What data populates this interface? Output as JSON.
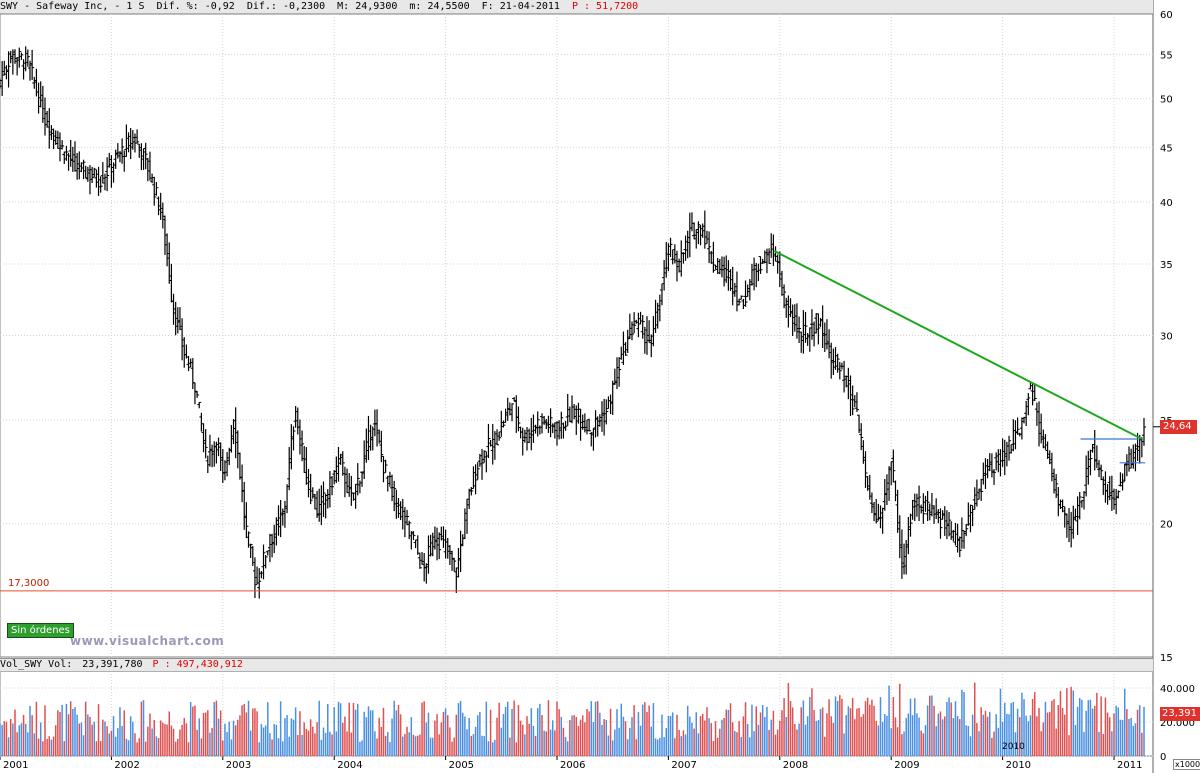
{
  "header": {
    "symbol": "SWY - Safeway Inc, -  1 S",
    "dif_pct": "Dif. %: -0,92",
    "dif_abs": "Dif.: -0,2300",
    "max": "M: 24,9300",
    "min": "m: 24,5500",
    "date": "F: 21-04-2011",
    "p": "P : 51,7200"
  },
  "volume_header": {
    "label": "Vol_SWY Vol:",
    "value": "23,391,780",
    "p": "P : 497,430,912"
  },
  "badges": {
    "price": "24,64",
    "volume": "23,391",
    "support": "17,3000",
    "orders": "Sin órdenes",
    "watermark": "www.visualchart.com",
    "vol_unit": "x1000",
    "year_marker": "2010"
  },
  "colors": {
    "price_bars": "#000000",
    "trendline": "#1ea81e",
    "support": "#e0502a",
    "breakout": "#3a78d8",
    "vol_up": "#4a90e2",
    "vol_down": "#e05050",
    "badge": "#e0322d"
  },
  "chart_data": [
    {
      "type": "line",
      "subtype": "ohlc-weekly",
      "title": "SWY - Safeway Inc",
      "x_ticks": [
        "2001",
        "2002",
        "2003",
        "2004",
        "2005",
        "2006",
        "2007",
        "2008",
        "2009",
        "2010",
        "2011"
      ],
      "y_ticks": [
        15,
        20,
        25,
        30,
        35,
        40,
        45,
        50,
        55,
        60
      ],
      "ylim": [
        15,
        60
      ],
      "grid": true,
      "close_series": {
        "name": "SWY",
        "points": [
          [
            2001.0,
            52
          ],
          [
            2001.1,
            55
          ],
          [
            2001.25,
            54
          ],
          [
            2001.4,
            48
          ],
          [
            2001.55,
            45
          ],
          [
            2001.7,
            43
          ],
          [
            2001.9,
            42
          ],
          [
            2002.05,
            44
          ],
          [
            2002.2,
            46
          ],
          [
            2002.3,
            44
          ],
          [
            2002.45,
            39
          ],
          [
            2002.55,
            32
          ],
          [
            2002.65,
            29
          ],
          [
            2002.75,
            27
          ],
          [
            2002.85,
            23
          ],
          [
            2002.95,
            24
          ],
          [
            2003.0,
            22
          ],
          [
            2003.1,
            25
          ],
          [
            2003.2,
            20
          ],
          [
            2003.3,
            17.5
          ],
          [
            2003.4,
            19
          ],
          [
            2003.55,
            20.5
          ],
          [
            2003.65,
            25.5
          ],
          [
            2003.75,
            22
          ],
          [
            2003.85,
            20.5
          ],
          [
            2003.95,
            21.5
          ],
          [
            2004.05,
            23
          ],
          [
            2004.15,
            21
          ],
          [
            2004.25,
            22.5
          ],
          [
            2004.35,
            25
          ],
          [
            2004.45,
            22.5
          ],
          [
            2004.55,
            21
          ],
          [
            2004.7,
            19.5
          ],
          [
            2004.8,
            18
          ],
          [
            2004.9,
            19.5
          ],
          [
            2005.0,
            19
          ],
          [
            2005.1,
            18
          ],
          [
            2005.2,
            21
          ],
          [
            2005.3,
            23
          ],
          [
            2005.45,
            24
          ],
          [
            2005.6,
            26
          ],
          [
            2005.7,
            24
          ],
          [
            2005.85,
            25
          ],
          [
            2006.0,
            24.5
          ],
          [
            2006.15,
            25.5
          ],
          [
            2006.3,
            24.5
          ],
          [
            2006.45,
            25.5
          ],
          [
            2006.55,
            28
          ],
          [
            2006.7,
            31
          ],
          [
            2006.85,
            29.5
          ],
          [
            2007.0,
            36
          ],
          [
            2007.1,
            35
          ],
          [
            2007.2,
            37.5
          ],
          [
            2007.3,
            38
          ],
          [
            2007.4,
            35
          ],
          [
            2007.55,
            34
          ],
          [
            2007.65,
            32
          ],
          [
            2007.8,
            35
          ],
          [
            2007.95,
            36
          ],
          [
            2008.05,
            32
          ],
          [
            2008.2,
            30
          ],
          [
            2008.35,
            31
          ],
          [
            2008.45,
            29
          ],
          [
            2008.6,
            27
          ],
          [
            2008.7,
            25
          ],
          [
            2008.8,
            21
          ],
          [
            2008.9,
            20
          ],
          [
            2009.0,
            23
          ],
          [
            2009.1,
            18
          ],
          [
            2009.2,
            21
          ],
          [
            2009.35,
            20.5
          ],
          [
            2009.5,
            20
          ],
          [
            2009.6,
            19
          ],
          [
            2009.75,
            21
          ],
          [
            2009.85,
            22.5
          ],
          [
            2010.0,
            23
          ],
          [
            2010.15,
            24.5
          ],
          [
            2010.25,
            27
          ],
          [
            2010.35,
            24
          ],
          [
            2010.5,
            21
          ],
          [
            2010.6,
            19.5
          ],
          [
            2010.7,
            21
          ],
          [
            2010.8,
            23.5
          ],
          [
            2010.9,
            22
          ],
          [
            2011.0,
            21
          ],
          [
            2011.1,
            22.5
          ],
          [
            2011.2,
            23.5
          ],
          [
            2011.28,
            24.64
          ]
        ]
      },
      "annotations": [
        {
          "name": "trendline",
          "from": [
            2007.95,
            36
          ],
          "to": [
            2011.25,
            24
          ]
        },
        {
          "name": "support",
          "y": 17.3
        },
        {
          "name": "breakout-upper",
          "y": 24,
          "x_range": [
            2010.7,
            2011.22
          ]
        },
        {
          "name": "breakout-lower",
          "y": 22.8,
          "x_range": [
            2011.05,
            2011.28
          ]
        }
      ],
      "last_value": 24.64
    },
    {
      "type": "bar",
      "title": "Vol_SWY Vol",
      "y_ticks": [
        0,
        20000,
        40000
      ],
      "ylim": [
        0,
        50000
      ],
      "last_value": 23391,
      "unit_label": "x1000"
    }
  ]
}
